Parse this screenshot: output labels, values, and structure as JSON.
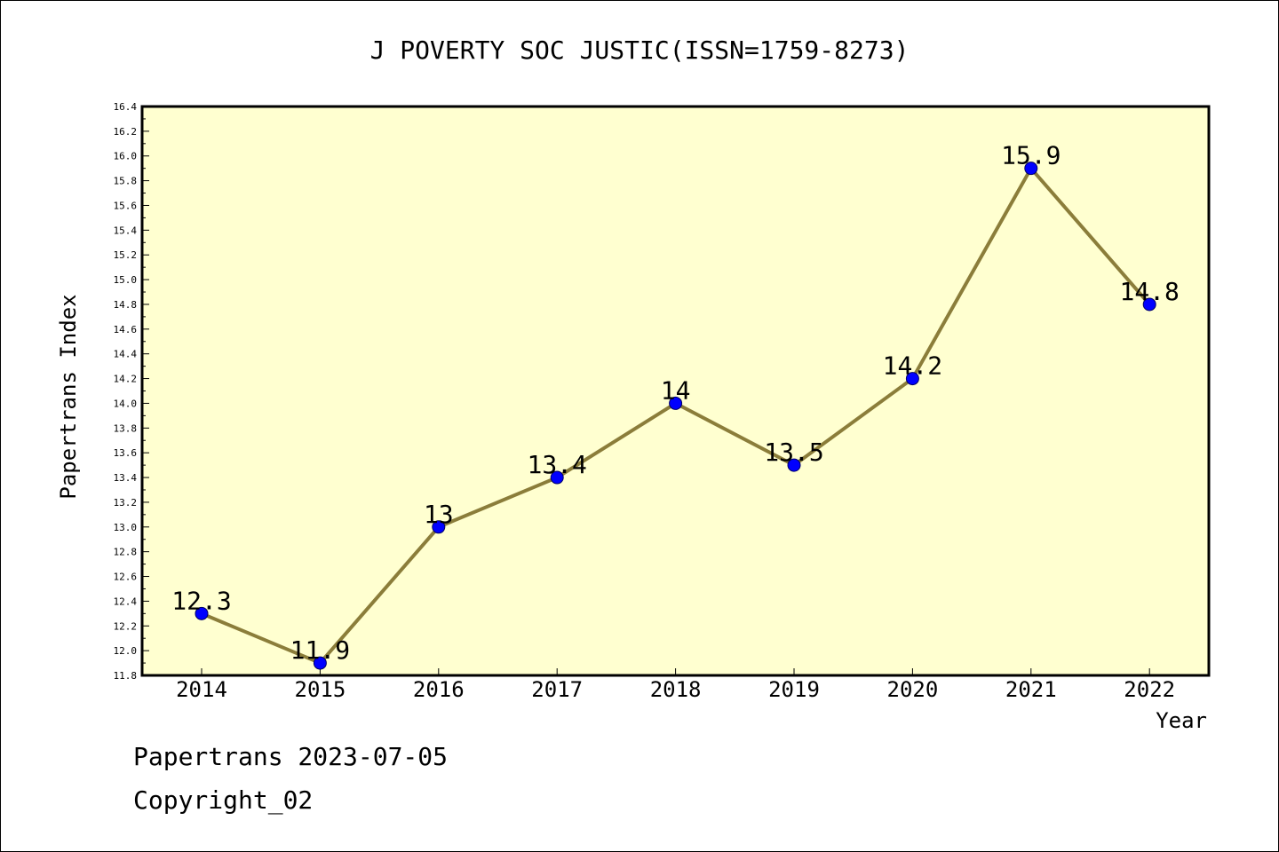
{
  "chart_data": {
    "type": "line",
    "title": "J POVERTY SOC JUSTIC(ISSN=1759-8273)",
    "xlabel": "Year",
    "ylabel": "Papertrans Index",
    "categories": [
      "2014",
      "2015",
      "2016",
      "2017",
      "2018",
      "2019",
      "2020",
      "2021",
      "2022"
    ],
    "series": [
      {
        "values": [
          12.3,
          11.9,
          13.0,
          13.4,
          14.0,
          13.5,
          14.2,
          15.9,
          14.8
        ],
        "data_labels": [
          "12.3",
          "11.9",
          "13",
          "13.4",
          "14",
          "13.5",
          "14.2",
          "15.9",
          "14.8"
        ],
        "line_color": "#8b7d3a",
        "marker_color": "#0000ff"
      }
    ],
    "ylim": [
      11.8,
      16.4
    ],
    "yticks": [
      "11.8",
      "12.0",
      "12.2",
      "12.4",
      "12.6",
      "12.8",
      "13.0",
      "13.2",
      "13.4",
      "13.6",
      "13.8",
      "14.0",
      "14.2",
      "14.4",
      "14.6",
      "14.8",
      "15.0",
      "15.2",
      "15.4",
      "15.6",
      "15.8",
      "16.0",
      "16.2",
      "16.4"
    ],
    "grid": false,
    "plot_background": "#ffffd0"
  },
  "footer": {
    "date_text": "Papertrans 2023-07-05",
    "copyright_text": "Copyright_02"
  }
}
